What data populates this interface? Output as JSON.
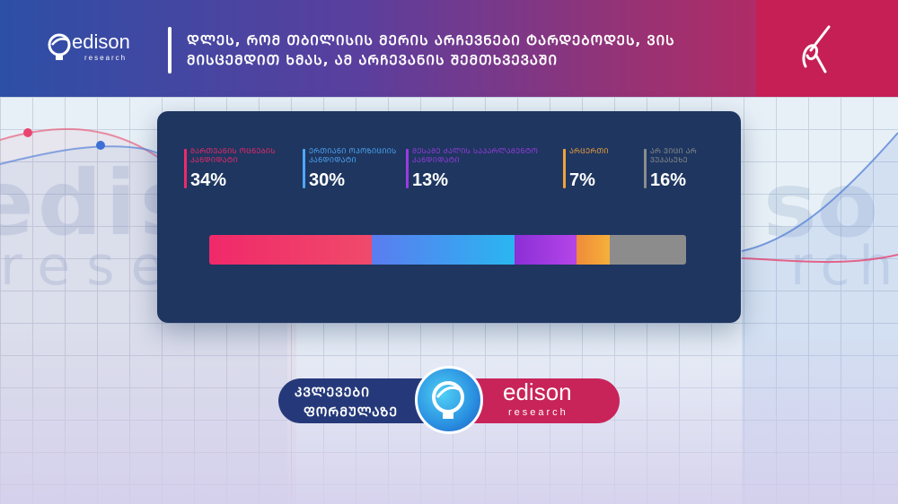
{
  "header": {
    "logo_name": "edison",
    "logo_sub": "research",
    "title_line1": "ᲓᲚᲔᲡ, ᲠᲝᲛ ᲗᲑᲘᲚᲘᲡᲘᲡ ᲛᲔᲠᲘᲡ ᲐᲠᲩᲔᲕᲜᲔᲑᲘ ᲢᲐᲠᲓᲔᲑᲝᲓᲔᲡ, ᲕᲘᲡ",
    "title_line2": "ᲛᲘᲡᲪᲔᲛᲓᲘᲗ ᲮᲛᲐᲡ, ᲐᲛ ᲐᲠᲩᲔᲕᲐᲜᲘᲡ ᲨᲔᲛᲗᲮᲕᲔᲕᲐᲨᲘ"
  },
  "background": {
    "ghost_left": "edis",
    "ghost_left_sub": "resea",
    "ghost_right": "so",
    "ghost_right_sub": "rch"
  },
  "chart_data": {
    "type": "bar",
    "orientation": "horizontal-stacked",
    "title": "",
    "categories": [
      "ᲛᲐᲠᲗᲕᲐᲜᲘᲡ ᲝᲪᲜᲔᲑᲘᲡ ᲙᲐᲜᲓᲘᲓᲐᲢᲘ",
      "ᲔᲠᲗᲘᲐᲜᲘ ᲝᲞᲝᲖᲘᲪᲘᲘᲡ ᲙᲐᲜᲓᲘᲓᲐᲢᲘ",
      "ᲛᲔᲡᲐᲛᲔ ᲫᲐᲚᲘᲡ ᲡᲐᲞᲐᲠᲚᲐᲛᲔᲜᲢᲝ ᲙᲐᲜᲓᲘᲓᲐᲢᲘ",
      "ᲐᲠᲪᲔᲠᲗᲘ",
      "ᲐᲠ ᲕᲘᲪᲘ ᲐᲠ ᲕᲣᲞᲐᲡᲣᲮᲔ"
    ],
    "values": [
      34,
      30,
      13,
      7,
      16
    ],
    "value_labels": [
      "34%",
      "30%",
      "13%",
      "7%",
      "16%"
    ],
    "colors": [
      "#f0296a",
      "#4fa7f7",
      "#9b3be0",
      "#f2a13a",
      "#8c8c8c"
    ],
    "unit": "%"
  },
  "badge": {
    "line1": "ᲙᲕᲚᲔᲕᲔᲑᲘ",
    "line2": "ᲤᲝᲠᲛᲣᲚᲐᲖᲔ",
    "name": "edison",
    "sub": "research"
  }
}
